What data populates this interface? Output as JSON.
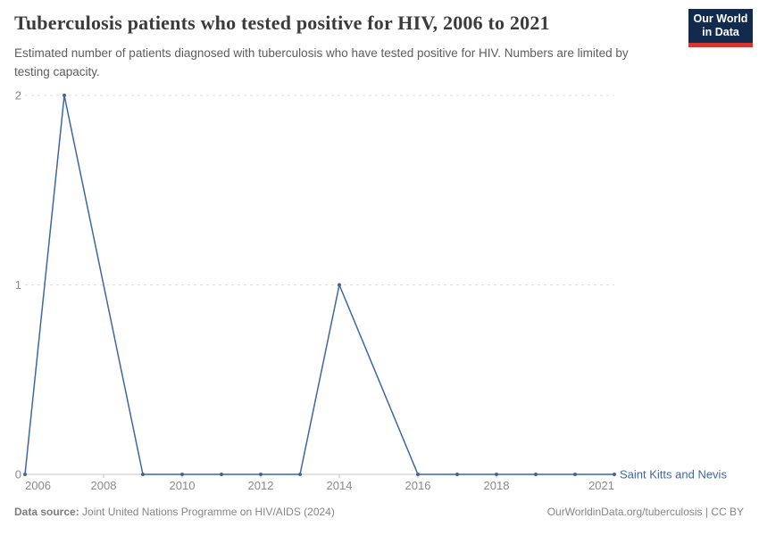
{
  "header": {
    "title": "Tuberculosis patients who tested positive for HIV, 2006 to 2021",
    "subtitle": "Estimated number of patients diagnosed with tuberculosis who have tested positive for HIV. Numbers are limited by testing capacity."
  },
  "logo": {
    "line1": "Our World",
    "line2": "in Data",
    "bg_color": "#122A4D",
    "bar_color": "#D6362F"
  },
  "chart_data": {
    "type": "line",
    "title": "Tuberculosis patients who tested positive for HIV, 2006 to 2021",
    "x": [
      2006,
      2007,
      2008,
      2009,
      2010,
      2011,
      2012,
      2013,
      2014,
      2015,
      2016,
      2017,
      2018,
      2019,
      2020,
      2021
    ],
    "series": [
      {
        "name": "Saint Kitts and Nevis",
        "color": "#3D67A3",
        "values": [
          0,
          2,
          null,
          0,
          0,
          0,
          0,
          0,
          1,
          null,
          0,
          0,
          0,
          0,
          0,
          0
        ]
      }
    ],
    "xlabel": "",
    "ylabel": "",
    "ylim": [
      0,
      2
    ],
    "yticks": [
      0,
      1,
      2
    ],
    "xticks": [
      2006,
      2008,
      2010,
      2012,
      2014,
      2016,
      2018,
      2021
    ],
    "grid": "horizontal-dashed",
    "legend_position": "right-of-line-end",
    "gridline_color": "#DEDEDE",
    "axis_color": "#C6C6C6",
    "tick_text_color": "#8b8b8b"
  },
  "footer": {
    "source_label": "Data source:",
    "source_text": "Joint United Nations Programme on HIV/AIDS (2024)",
    "credit": "OurWorldinData.org/tuberculosis | CC BY"
  }
}
